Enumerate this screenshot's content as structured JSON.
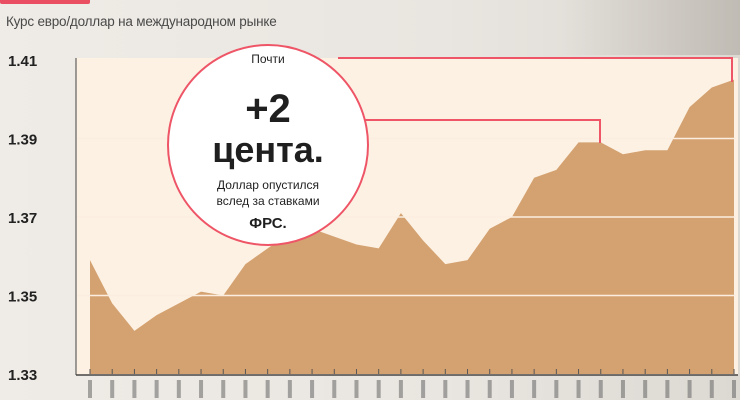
{
  "subtitle": "Курс евро/доллар на международном рынке",
  "callout": {
    "top": "Почти",
    "big1": "+2",
    "big2": "цента.",
    "line1": "Доллар опустился",
    "line2": "вслед за ставками",
    "line3": "ФРС."
  },
  "colors": {
    "area": "#d4a271",
    "plot_bg": "#fdf1e3",
    "accent": "#ee5566",
    "grid": "#fbeee0"
  },
  "chart_data": {
    "type": "area",
    "title": "",
    "xlabel": "",
    "ylabel": "",
    "ylim": [
      1.33,
      1.41
    ],
    "yticks": [
      "1.33",
      "1.35",
      "1.37",
      "1.39",
      "1.41"
    ],
    "grid": true,
    "values": [
      1.359,
      1.348,
      1.341,
      1.345,
      1.348,
      1.351,
      1.35,
      1.358,
      1.362,
      1.366,
      1.367,
      1.365,
      1.363,
      1.362,
      1.371,
      1.364,
      1.358,
      1.359,
      1.367,
      1.37,
      1.38,
      1.382,
      1.389,
      1.389,
      1.386,
      1.387,
      1.387,
      1.398,
      1.403,
      1.405
    ]
  }
}
